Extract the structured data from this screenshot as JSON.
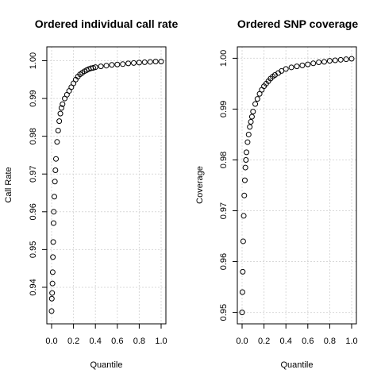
{
  "chart_data": [
    {
      "type": "scatter",
      "title": "Ordered individual call rate",
      "xlabel": "Quantile",
      "ylabel": "Call Rate",
      "xlim": [
        0,
        1
      ],
      "ylim": [
        0.932,
        1.002
      ],
      "xticks": [
        "0.0",
        "0.2",
        "0.4",
        "0.6",
        "0.8",
        "1.0"
      ],
      "yticks": [
        "0.94",
        "0.95",
        "0.96",
        "0.97",
        "0.98",
        "0.99",
        "1.00"
      ],
      "grid": true,
      "marker": "open-circle",
      "color": "#000000",
      "x": [
        0.0,
        0.002,
        0.005,
        0.008,
        0.01,
        0.012,
        0.015,
        0.018,
        0.02,
        0.025,
        0.03,
        0.035,
        0.04,
        0.05,
        0.06,
        0.07,
        0.08,
        0.09,
        0.1,
        0.12,
        0.14,
        0.16,
        0.18,
        0.2,
        0.22,
        0.24,
        0.26,
        0.28,
        0.3,
        0.32,
        0.34,
        0.36,
        0.38,
        0.4,
        0.45,
        0.5,
        0.55,
        0.6,
        0.65,
        0.7,
        0.75,
        0.8,
        0.85,
        0.9,
        0.95,
        1.0
      ],
      "y": [
        0.9337,
        0.937,
        0.9385,
        0.941,
        0.944,
        0.948,
        0.952,
        0.957,
        0.96,
        0.964,
        0.968,
        0.971,
        0.974,
        0.9785,
        0.9815,
        0.984,
        0.986,
        0.9875,
        0.9885,
        0.99,
        0.991,
        0.992,
        0.993,
        0.994,
        0.995,
        0.9958,
        0.9964,
        0.9968,
        0.9972,
        0.9975,
        0.9978,
        0.998,
        0.9981,
        0.9983,
        0.9985,
        0.9987,
        0.9989,
        0.999,
        0.9991,
        0.9993,
        0.9994,
        0.9995,
        0.9996,
        0.9997,
        0.9998,
        0.9998
      ]
    },
    {
      "type": "scatter",
      "title": "Ordered SNP coverage",
      "xlabel": "Quantile",
      "ylabel": "Coverage",
      "xlim": [
        0,
        1
      ],
      "ylim": [
        0.949,
        1.001
      ],
      "xticks": [
        "0.0",
        "0.2",
        "0.4",
        "0.6",
        "0.8",
        "1.0"
      ],
      "yticks": [
        "0.95",
        "0.96",
        "0.97",
        "0.98",
        "0.99",
        "1.00"
      ],
      "grid": true,
      "marker": "open-circle",
      "color": "#000000",
      "x": [
        0.0,
        0.003,
        0.006,
        0.01,
        0.015,
        0.02,
        0.025,
        0.03,
        0.035,
        0.04,
        0.05,
        0.06,
        0.07,
        0.08,
        0.09,
        0.1,
        0.12,
        0.14,
        0.16,
        0.18,
        0.2,
        0.22,
        0.24,
        0.26,
        0.28,
        0.3,
        0.33,
        0.36,
        0.4,
        0.45,
        0.5,
        0.55,
        0.6,
        0.65,
        0.7,
        0.75,
        0.8,
        0.85,
        0.9,
        0.95,
        1.0
      ],
      "y": [
        0.95,
        0.954,
        0.958,
        0.964,
        0.969,
        0.973,
        0.976,
        0.9785,
        0.98,
        0.9815,
        0.9835,
        0.985,
        0.9865,
        0.9875,
        0.9885,
        0.9895,
        0.991,
        0.992,
        0.993,
        0.9938,
        0.9945,
        0.995,
        0.9955,
        0.996,
        0.9964,
        0.9967,
        0.9971,
        0.9975,
        0.9979,
        0.9982,
        0.9984,
        0.9986,
        0.9988,
        0.999,
        0.9992,
        0.9993,
        0.9995,
        0.9996,
        0.9997,
        0.9998,
        0.9999
      ]
    }
  ]
}
